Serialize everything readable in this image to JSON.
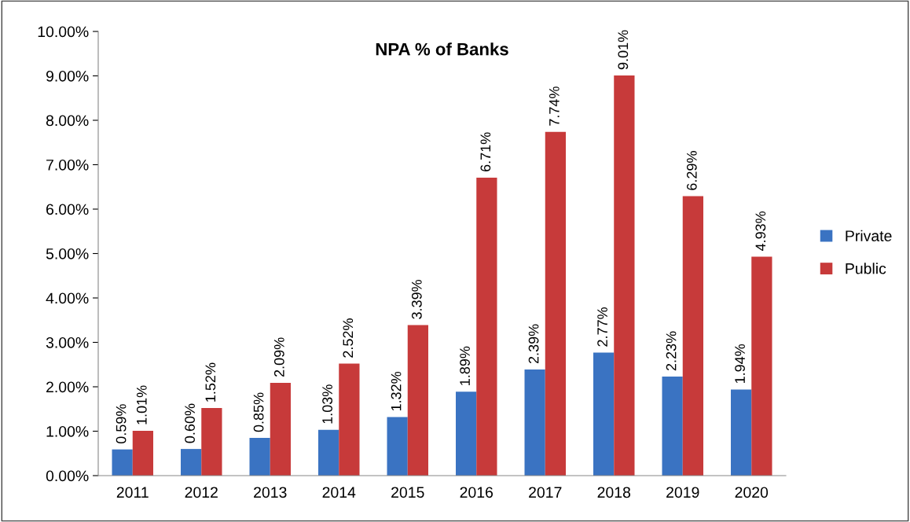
{
  "chart_data": {
    "type": "bar",
    "title": "NPA % of Banks",
    "categories": [
      "2011",
      "2012",
      "2013",
      "2014",
      "2015",
      "2016",
      "2017",
      "2018",
      "2019",
      "2020"
    ],
    "series": [
      {
        "name": "Private",
        "color": "#3a73c2",
        "values": [
          0.59,
          0.6,
          0.85,
          1.03,
          1.32,
          1.89,
          2.39,
          2.77,
          2.23,
          1.94
        ],
        "value_labels": [
          "0.59%",
          "0.60%",
          "0.85%",
          "1.03%",
          "1.32%",
          "1.89%",
          "2.39%",
          "2.77%",
          "2.23%",
          "1.94%"
        ]
      },
      {
        "name": "Public",
        "color": "#c73a3a",
        "values": [
          1.01,
          1.52,
          2.09,
          2.52,
          3.39,
          6.71,
          7.74,
          9.01,
          6.29,
          4.93
        ],
        "value_labels": [
          "1.01%",
          "1.52%",
          "2.09%",
          "2.52%",
          "3.39%",
          "6.71%",
          "7.74%",
          "9.01%",
          "6.29%",
          "4.93%"
        ]
      }
    ],
    "ylim": [
      0,
      10
    ],
    "yticks": [
      {
        "value": 0,
        "label": "0.00%"
      },
      {
        "value": 1,
        "label": "1.00%"
      },
      {
        "value": 2,
        "label": "2.00%"
      },
      {
        "value": 3,
        "label": "3.00%"
      },
      {
        "value": 4,
        "label": "4.00%"
      },
      {
        "value": 5,
        "label": "5.00%"
      },
      {
        "value": 6,
        "label": "6.00%"
      },
      {
        "value": 7,
        "label": "7.00%"
      },
      {
        "value": 8,
        "label": "8.00%"
      },
      {
        "value": 9,
        "label": "9.00%"
      },
      {
        "value": 10,
        "label": "10.00%"
      }
    ],
    "grid": false,
    "legend": "right"
  }
}
